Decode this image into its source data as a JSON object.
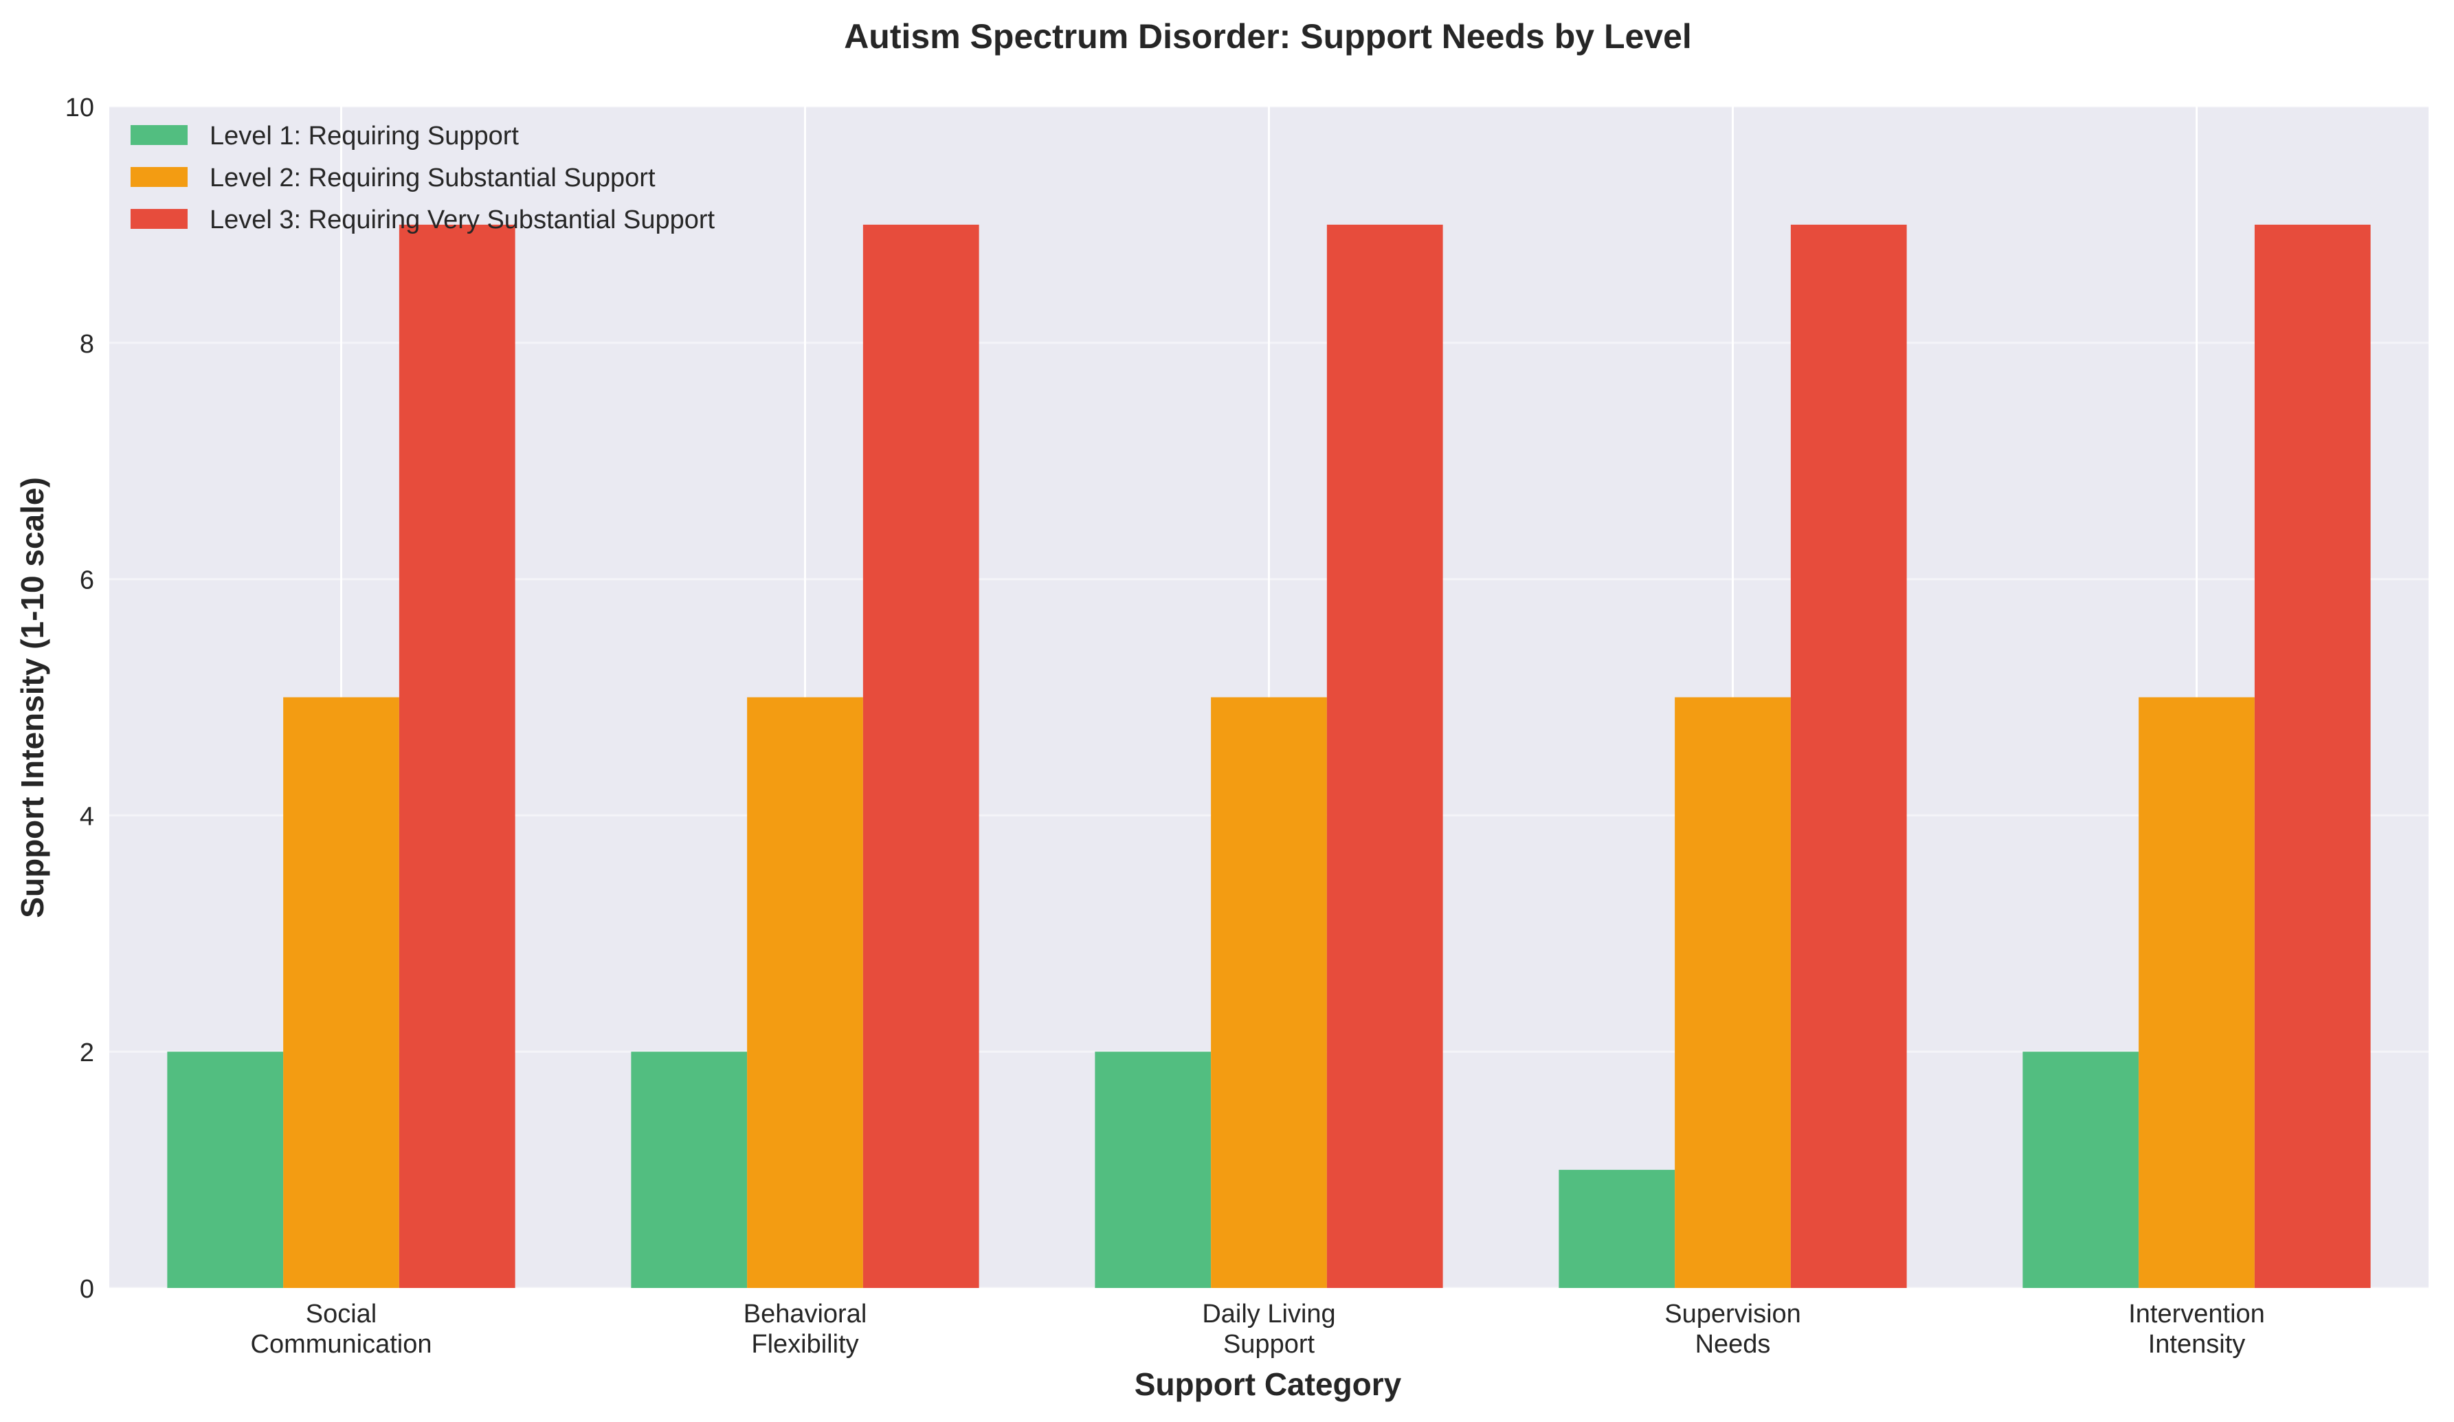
{
  "chart_data": {
    "type": "bar",
    "title": "Autism Spectrum Disorder: Support Needs by Level",
    "xlabel": "Support Category",
    "ylabel": "Support Intensity (1-10 scale)",
    "ylim": [
      0,
      10
    ],
    "yticks": [
      0,
      2,
      4,
      6,
      8,
      10
    ],
    "grid": true,
    "legend_position": "top-left",
    "categories": [
      [
        "Social",
        "Communication"
      ],
      [
        "Behavioral",
        "Flexibility"
      ],
      [
        "Daily Living",
        "Support"
      ],
      [
        "Supervision",
        "Needs"
      ],
      [
        "Intervention",
        "Intensity"
      ]
    ],
    "series": [
      {
        "name": "Level 1: Requiring Support",
        "color": "#52be80",
        "values": [
          2,
          2,
          2,
          1,
          2
        ]
      },
      {
        "name": "Level 2: Requiring Substantial Support",
        "color": "#f39c12",
        "values": [
          5,
          5,
          5,
          5,
          5
        ]
      },
      {
        "name": "Level 3: Requiring Very Substantial Support",
        "color": "#e74c3c",
        "values": [
          9,
          9,
          9,
          9,
          9
        ]
      }
    ]
  }
}
